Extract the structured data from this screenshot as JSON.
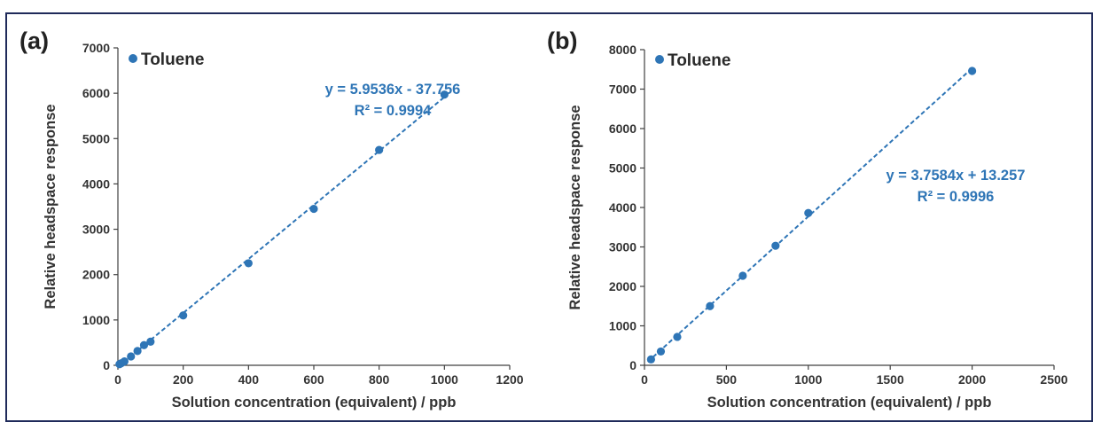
{
  "colors": {
    "series": "#2e75b6",
    "axis": "#404040",
    "frame": "#1f2a5a"
  },
  "chart_data": [
    {
      "type": "scatter",
      "panel_label": "(a)",
      "title": "",
      "xlabel": "Solution concentration (equivalent) / ppb",
      "ylabel": "Relative headspace response",
      "xlim": [
        0,
        1200
      ],
      "ylim": [
        0,
        7000
      ],
      "xticks": [
        0,
        200,
        400,
        600,
        800,
        1000,
        1200
      ],
      "yticks": [
        0,
        1000,
        2000,
        3000,
        4000,
        5000,
        6000,
        7000
      ],
      "grid": false,
      "legend_position": "top-left",
      "series": [
        {
          "name": "Toluene",
          "x": [
            5,
            10,
            20,
            40,
            60,
            80,
            100,
            200,
            400,
            600,
            800,
            1000
          ],
          "y": [
            25,
            45,
            85,
            195,
            315,
            445,
            520,
            1100,
            2250,
            3450,
            4750,
            5970
          ]
        }
      ],
      "trendline": {
        "slope": 5.9536,
        "intercept": -37.756,
        "x_range": [
          0,
          1000
        ],
        "style": "dashed"
      },
      "annotations": [
        "y = 5.9536x - 37.756",
        "R² = 0.9994"
      ]
    },
    {
      "type": "scatter",
      "panel_label": "(b)",
      "title": "",
      "xlabel": "Solution concentration (equivalent) / ppb",
      "ylabel": "Relative headspace response",
      "xlim": [
        0,
        2500
      ],
      "ylim": [
        0,
        8000
      ],
      "xticks": [
        0,
        500,
        1000,
        1500,
        2000,
        2500
      ],
      "yticks": [
        0,
        1000,
        2000,
        3000,
        4000,
        5000,
        6000,
        7000,
        8000
      ],
      "grid": false,
      "legend_position": "top-left",
      "series": [
        {
          "name": "Toluene",
          "x": [
            40,
            100,
            200,
            400,
            600,
            800,
            1000,
            2000
          ],
          "y": [
            150,
            350,
            720,
            1500,
            2270,
            3030,
            3860,
            7460
          ]
        }
      ],
      "trendline": {
        "slope": 3.7584,
        "intercept": 13.257,
        "x_range": [
          20,
          2000
        ],
        "style": "dashed"
      },
      "annotations": [
        "y = 3.7584x + 13.257",
        "R² = 0.9996"
      ]
    }
  ]
}
